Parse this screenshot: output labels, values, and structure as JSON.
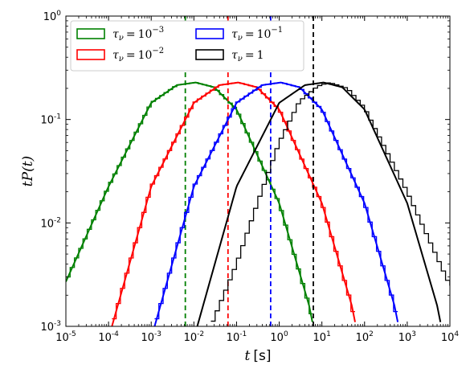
{
  "chart_data": {
    "type": "line",
    "x_scale": "log",
    "y_scale": "log",
    "xlim": [
      1e-05,
      10000
    ],
    "ylim": [
      0.001,
      1
    ],
    "xlabel_var": "t",
    "xlabel_unit": "[s]",
    "ylabel": "tP(t)",
    "legend_position": "top-left",
    "legend_columns": 2,
    "x_ticks": [
      {
        "base": "10",
        "exp": "-5",
        "value": 1e-05
      },
      {
        "base": "10",
        "exp": "-4",
        "value": 0.0001
      },
      {
        "base": "10",
        "exp": "-3",
        "value": 0.001
      },
      {
        "base": "10",
        "exp": "-2",
        "value": 0.01
      },
      {
        "base": "10",
        "exp": "-1",
        "value": 0.1
      },
      {
        "base": "10",
        "exp": "0",
        "value": 1
      },
      {
        "base": "10",
        "exp": "1",
        "value": 10
      },
      {
        "base": "10",
        "exp": "2",
        "value": 100
      },
      {
        "base": "10",
        "exp": "3",
        "value": 1000
      },
      {
        "base": "10",
        "exp": "4",
        "value": 10000
      }
    ],
    "y_ticks": [
      {
        "base": "10",
        "exp": "-3",
        "value": 0.001
      },
      {
        "base": "10",
        "exp": "-2",
        "value": 0.01
      },
      {
        "base": "10",
        "exp": "-1",
        "value": 0.1
      },
      {
        "base": "10",
        "exp": "0",
        "value": 1
      }
    ],
    "series": [
      {
        "legend_base": "τ",
        "legend_sub": "ν",
        "legend_rhs_base": "10",
        "legend_rhs_exp": "−3",
        "color": "#008000",
        "peak_t": 0.011,
        "peak_value": 0.228,
        "vline_t": 0.0063,
        "line_points": [
          [
            1e-05,
            0.0027
          ],
          [
            0.0001,
            0.0225
          ],
          [
            0.001,
            0.145
          ],
          [
            0.004,
            0.215
          ],
          [
            0.011,
            0.228
          ],
          [
            0.03,
            0.205
          ],
          [
            0.1,
            0.125
          ],
          [
            1,
            0.0155
          ],
          [
            5,
            0.0016
          ],
          [
            6,
            0.0011
          ]
        ],
        "hist_points": [
          [
            1e-05,
            0.0027
          ],
          [
            0.0001,
            0.0225
          ],
          [
            0.001,
            0.145
          ],
          [
            0.004,
            0.215
          ],
          [
            0.011,
            0.228
          ],
          [
            0.03,
            0.205
          ],
          [
            0.1,
            0.125
          ],
          [
            1,
            0.0155
          ],
          [
            5,
            0.0016
          ],
          [
            6,
            0.0011
          ]
        ]
      },
      {
        "legend_base": "τ",
        "legend_sub": "ν",
        "legend_rhs_base": "10",
        "legend_rhs_exp": "−2",
        "color": "#ff0000",
        "peak_t": 0.11,
        "peak_value": 0.228,
        "vline_t": 0.063,
        "line_points": [
          [
            0.00012,
            0.001
          ],
          [
            0.001,
            0.0225
          ],
          [
            0.01,
            0.145
          ],
          [
            0.04,
            0.215
          ],
          [
            0.11,
            0.228
          ],
          [
            0.3,
            0.205
          ],
          [
            1,
            0.125
          ],
          [
            10,
            0.0155
          ],
          [
            50,
            0.0016
          ],
          [
            60,
            0.0011
          ]
        ],
        "hist_points": [
          [
            0.00012,
            0.001
          ],
          [
            0.001,
            0.0225
          ],
          [
            0.01,
            0.145
          ],
          [
            0.04,
            0.215
          ],
          [
            0.11,
            0.228
          ],
          [
            0.3,
            0.205
          ],
          [
            1,
            0.125
          ],
          [
            10,
            0.0155
          ],
          [
            50,
            0.0016
          ],
          [
            60,
            0.0011
          ]
        ]
      },
      {
        "legend_base": "τ",
        "legend_sub": "ν",
        "legend_rhs_base": "10",
        "legend_rhs_exp": "−1",
        "color": "#0000ff",
        "peak_t": 1.1,
        "peak_value": 0.228,
        "vline_t": 0.63,
        "line_points": [
          [
            0.0012,
            0.001
          ],
          [
            0.01,
            0.0225
          ],
          [
            0.1,
            0.145
          ],
          [
            0.4,
            0.215
          ],
          [
            1.1,
            0.228
          ],
          [
            3,
            0.205
          ],
          [
            10,
            0.125
          ],
          [
            100,
            0.0155
          ],
          [
            500,
            0.0016
          ],
          [
            600,
            0.0011
          ]
        ],
        "hist_points": [
          [
            0.0012,
            0.001
          ],
          [
            0.01,
            0.0225
          ],
          [
            0.1,
            0.145
          ],
          [
            0.4,
            0.215
          ],
          [
            1.1,
            0.228
          ],
          [
            3,
            0.205
          ],
          [
            10,
            0.125
          ],
          [
            100,
            0.0155
          ],
          [
            500,
            0.0016
          ],
          [
            600,
            0.0011
          ]
        ]
      },
      {
        "legend_base": "τ",
        "legend_sub": "ν",
        "legend_rhs_base": "1",
        "legend_rhs_exp": "",
        "color": "#000000",
        "peak_t": 11,
        "peak_value": 0.228,
        "vline_t": 6.3,
        "line_points": [
          [
            0.012,
            0.001
          ],
          [
            0.1,
            0.0225
          ],
          [
            1,
            0.145
          ],
          [
            4,
            0.215
          ],
          [
            11,
            0.228
          ],
          [
            30,
            0.205
          ],
          [
            100,
            0.125
          ],
          [
            1000,
            0.0155
          ],
          [
            5000,
            0.0016
          ],
          [
            6000,
            0.0011
          ]
        ],
        "hist_points": [
          [
            0.025,
            0.001
          ],
          [
            0.1,
            0.004
          ],
          [
            0.3,
            0.015
          ],
          [
            1,
            0.06
          ],
          [
            3,
            0.15
          ],
          [
            8,
            0.21
          ],
          [
            15,
            0.228
          ],
          [
            40,
            0.2
          ],
          [
            100,
            0.13
          ],
          [
            1000,
            0.02
          ],
          [
            10000,
            0.0025
          ]
        ]
      }
    ]
  }
}
